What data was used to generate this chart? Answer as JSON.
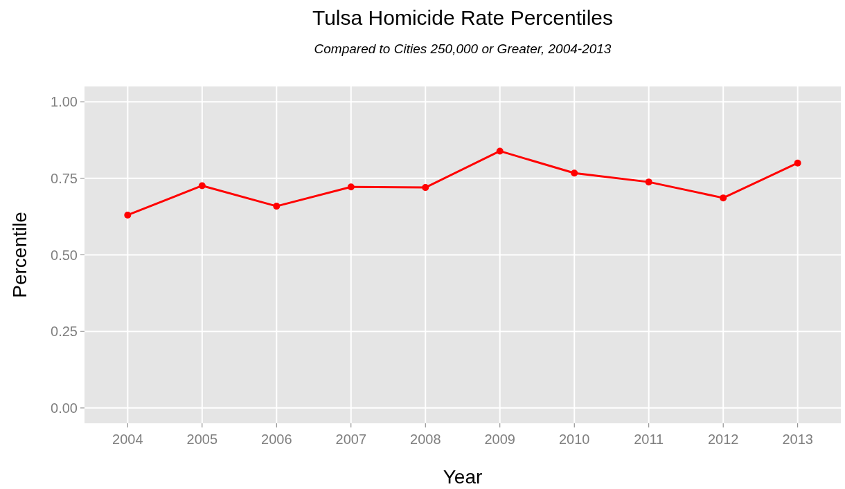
{
  "chart_data": {
    "type": "line",
    "title": "Tulsa Homicide Rate Percentiles",
    "subtitle": "Compared to Cities 250,000 or Greater, 2004-2013",
    "xlabel": "Year",
    "ylabel": "Percentile",
    "categories": [
      "2004",
      "2005",
      "2006",
      "2007",
      "2008",
      "2009",
      "2010",
      "2011",
      "2012",
      "2013"
    ],
    "series": [
      {
        "color": "#ff0000",
        "values": [
          0.63,
          0.726,
          0.659,
          0.722,
          0.72,
          0.839,
          0.767,
          0.738,
          0.686,
          0.8
        ]
      }
    ],
    "ylim": [
      -0.05,
      1.05
    ],
    "yticks": [
      {
        "value": 0,
        "label": "0.00"
      },
      {
        "value": 0.25,
        "label": "0.25"
      },
      {
        "value": 0.5,
        "label": "0.50"
      },
      {
        "value": 0.75,
        "label": "0.75"
      },
      {
        "value": 1,
        "label": "1.00"
      }
    ],
    "grid": true,
    "marker": "circle",
    "line_style": "solid"
  }
}
